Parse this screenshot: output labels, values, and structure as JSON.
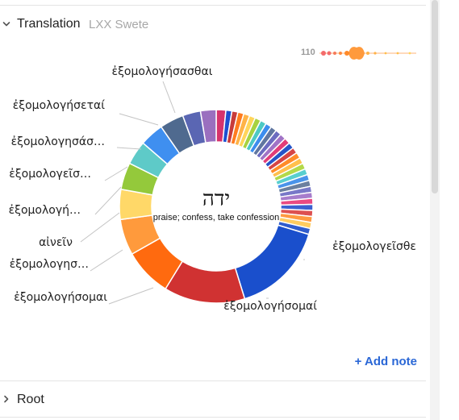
{
  "translation_section": {
    "title": "Translation",
    "subtitle": "LXX Swete",
    "spark_label": "110",
    "add_note_label": "+ Add note"
  },
  "root_section": {
    "title": "Root"
  },
  "chart_data": {
    "type": "pie",
    "variant": "donut",
    "center_title": "ידה",
    "center_subtitle": "praise; confess, take confession",
    "slices": [
      {
        "label": "ἐξομολογεῖσθε",
        "value": 15.5,
        "color": "#1a4fcc"
      },
      {
        "label": "ἐξομολογήσομαί",
        "value": 13.5,
        "color": "#d03232"
      },
      {
        "label": "ἐξομολογήσομαι",
        "value": 8,
        "color": "#ff6a0f"
      },
      {
        "label": "ἐξομολογησ…",
        "value": 6,
        "color": "#ff9a3c"
      },
      {
        "label": "αἰνεῖν",
        "value": 5,
        "color": "#ffd868"
      },
      {
        "label": "ἐξομολογή…",
        "value": 4.5,
        "color": "#94c93b"
      },
      {
        "label": "ἐξομολογεῖσ…",
        "value": 4,
        "color": "#5ecac8"
      },
      {
        "label": "ἐξομολογησάσ…",
        "value": 4,
        "color": "#3f8ff0"
      },
      {
        "label": "ἐξομολογήσεταί",
        "value": 4,
        "color": "#4f6a8f"
      },
      {
        "label": "",
        "value": 3,
        "color": "#5a66b3"
      },
      {
        "label": "ἐξομολογήσασθαι",
        "value": 2.6,
        "color": "#9a6fbf"
      },
      {
        "label": "",
        "value": 1.6,
        "color": "#d6336c"
      },
      {
        "label": "",
        "value": 1,
        "color": "#1e4fd0"
      },
      {
        "label": "",
        "value": 1,
        "color": "#c83b3b"
      },
      {
        "label": "",
        "value": 1,
        "color": "#ff7c1f"
      },
      {
        "label": "",
        "value": 1,
        "color": "#ffb347"
      },
      {
        "label": "",
        "value": 1,
        "color": "#ffd55a"
      },
      {
        "label": "",
        "value": 1,
        "color": "#a7d240"
      },
      {
        "label": "",
        "value": 1,
        "color": "#4cc9c4"
      },
      {
        "label": "",
        "value": 1,
        "color": "#3c8dee"
      },
      {
        "label": "",
        "value": 1,
        "color": "#6076a0"
      },
      {
        "label": "",
        "value": 1,
        "color": "#6c6cc0"
      },
      {
        "label": "",
        "value": 1,
        "color": "#a173c6"
      },
      {
        "label": "",
        "value": 1,
        "color": "#e23d78"
      },
      {
        "label": "",
        "value": 1,
        "color": "#2754c8"
      },
      {
        "label": "",
        "value": 1,
        "color": "#d64545"
      },
      {
        "label": "",
        "value": 1,
        "color": "#ff8c2a"
      },
      {
        "label": "",
        "value": 1,
        "color": "#ffc04d"
      },
      {
        "label": "",
        "value": 1,
        "color": "#b3d94a"
      },
      {
        "label": "",
        "value": 1,
        "color": "#58cfcf"
      },
      {
        "label": "",
        "value": 1,
        "color": "#4a93ea"
      },
      {
        "label": "",
        "value": 1,
        "color": "#6b7f9f"
      },
      {
        "label": "",
        "value": 1,
        "color": "#7878c8"
      },
      {
        "label": "",
        "value": 1,
        "color": "#a77dcc"
      },
      {
        "label": "",
        "value": 1,
        "color": "#ea4a82"
      },
      {
        "label": "",
        "value": 1,
        "color": "#3b60d0"
      },
      {
        "label": "",
        "value": 1,
        "color": "#dd5050"
      },
      {
        "label": "",
        "value": 1,
        "color": "#ff9a40"
      },
      {
        "label": "",
        "value": 1,
        "color": "#ffcc60"
      },
      {
        "label": "",
        "value": 1,
        "color": "#2f5ccd"
      }
    ]
  }
}
